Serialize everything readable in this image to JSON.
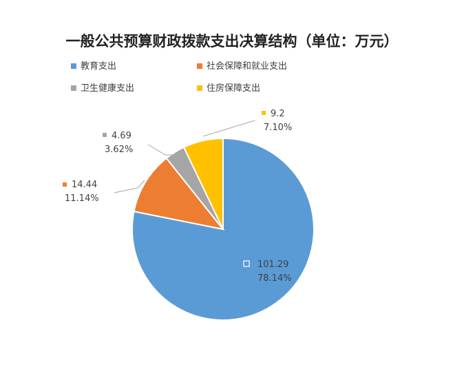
{
  "chart_data": {
    "type": "pie",
    "title": "一般公共预算财政拨款支出决算结构（单位：万元）",
    "slices": [
      {
        "name": "教育支出",
        "value": 101.29,
        "percent": "78.14%",
        "color": "#5B9BD5"
      },
      {
        "name": "社会保障和就业支出",
        "value": 14.44,
        "percent": "11.14%",
        "color": "#ED7D31"
      },
      {
        "name": "卫生健康支出",
        "value": 4.69,
        "percent": "3.62%",
        "color": "#A5A5A5"
      },
      {
        "name": "住房保障支出",
        "value": 9.2,
        "percent": "7.10%",
        "color": "#FFC000"
      }
    ],
    "value_labels": [
      "101.29",
      "14.44",
      "4.69",
      "9.2"
    ],
    "legend_placement": "top-left",
    "start_angle": "12 o'clock",
    "direction": "clockwise"
  }
}
